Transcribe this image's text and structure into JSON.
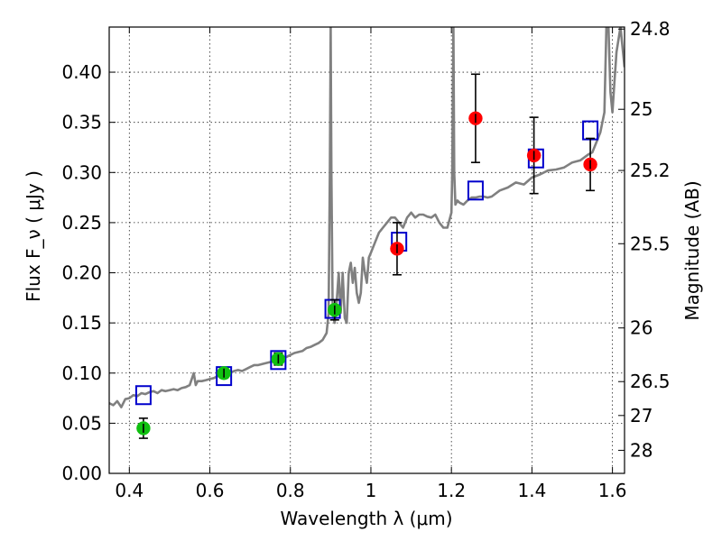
{
  "chart_data": {
    "type": "scatter",
    "xlabel": "Wavelength  λ (μm)",
    "ylabel": "Flux  F_ν  ( μJy )",
    "y2label": "Magnitude (AB)",
    "xlim": [
      0.35,
      1.63
    ],
    "ylim": [
      0.0,
      0.445
    ],
    "grid": true,
    "x_ticks": [
      0.4,
      0.6,
      0.8,
      1.0,
      1.2,
      1.4,
      1.6
    ],
    "x_tick_labels": [
      "0.4",
      "0.6",
      "0.8",
      "1",
      "1.2",
      "1.4",
      "1.6"
    ],
    "y_ticks": [
      0.0,
      0.05,
      0.1,
      0.15,
      0.2,
      0.25,
      0.3,
      0.35,
      0.4
    ],
    "y_tick_labels": [
      "0.00",
      "0.05",
      "0.10",
      "0.15",
      "0.20",
      "0.25",
      "0.30",
      "0.35",
      "0.40"
    ],
    "right_axis_labels": [
      "24.8",
      "25",
      "25.2",
      "25.5",
      "26",
      "26.5",
      "27",
      "28"
    ],
    "right_axis_flux": [
      0.443,
      0.363,
      0.302,
      0.229,
      0.145,
      0.0915,
      0.0577,
      0.023
    ],
    "colors": {
      "model": "#808080",
      "optical": "#10c010",
      "nir": "#ff0000",
      "model_box": "#0000cc",
      "errorbar": "#000000"
    },
    "series": [
      {
        "type": "line",
        "role": "model-spectrum",
        "x": [
          0.35,
          0.36,
          0.37,
          0.38,
          0.39,
          0.4,
          0.41,
          0.42,
          0.43,
          0.44,
          0.45,
          0.46,
          0.47,
          0.48,
          0.49,
          0.5,
          0.51,
          0.52,
          0.53,
          0.54,
          0.55,
          0.56,
          0.565,
          0.57,
          0.58,
          0.59,
          0.6,
          0.61,
          0.62,
          0.63,
          0.64,
          0.65,
          0.66,
          0.67,
          0.68,
          0.69,
          0.7,
          0.71,
          0.72,
          0.73,
          0.74,
          0.75,
          0.76,
          0.77,
          0.78,
          0.79,
          0.8,
          0.81,
          0.82,
          0.83,
          0.84,
          0.85,
          0.86,
          0.87,
          0.88,
          0.89,
          0.895,
          0.898,
          0.9,
          0.902,
          0.905,
          0.91,
          0.915,
          0.92,
          0.925,
          0.93,
          0.935,
          0.94,
          0.945,
          0.95,
          0.955,
          0.96,
          0.965,
          0.97,
          0.975,
          0.98,
          0.985,
          0.99,
          0.995,
          1.0,
          1.01,
          1.02,
          1.03,
          1.04,
          1.05,
          1.06,
          1.07,
          1.08,
          1.09,
          1.1,
          1.11,
          1.12,
          1.13,
          1.14,
          1.15,
          1.16,
          1.17,
          1.18,
          1.19,
          1.2,
          1.202,
          1.205,
          1.207,
          1.21,
          1.215,
          1.22,
          1.23,
          1.24,
          1.25,
          1.26,
          1.27,
          1.28,
          1.29,
          1.3,
          1.32,
          1.34,
          1.36,
          1.38,
          1.4,
          1.42,
          1.44,
          1.46,
          1.48,
          1.5,
          1.52,
          1.54,
          1.55,
          1.56,
          1.57,
          1.58,
          1.585,
          1.59,
          1.595,
          1.6,
          1.605,
          1.61,
          1.62,
          1.63
        ],
        "y": [
          0.07,
          0.068,
          0.072,
          0.066,
          0.074,
          0.075,
          0.078,
          0.077,
          0.08,
          0.079,
          0.081,
          0.082,
          0.08,
          0.083,
          0.082,
          0.083,
          0.084,
          0.083,
          0.085,
          0.086,
          0.088,
          0.1,
          0.088,
          0.092,
          0.092,
          0.093,
          0.094,
          0.095,
          0.097,
          0.096,
          0.1,
          0.1,
          0.102,
          0.103,
          0.102,
          0.104,
          0.106,
          0.108,
          0.108,
          0.109,
          0.11,
          0.111,
          0.112,
          0.113,
          0.115,
          0.116,
          0.118,
          0.12,
          0.121,
          0.122,
          0.125,
          0.126,
          0.128,
          0.13,
          0.133,
          0.14,
          0.16,
          0.3,
          0.445,
          0.3,
          0.16,
          0.15,
          0.17,
          0.2,
          0.16,
          0.2,
          0.155,
          0.15,
          0.2,
          0.21,
          0.19,
          0.205,
          0.18,
          0.17,
          0.18,
          0.215,
          0.2,
          0.19,
          0.215,
          0.22,
          0.23,
          0.24,
          0.245,
          0.25,
          0.255,
          0.255,
          0.25,
          0.245,
          0.255,
          0.26,
          0.255,
          0.258,
          0.258,
          0.256,
          0.255,
          0.258,
          0.25,
          0.245,
          0.245,
          0.26,
          0.3,
          0.445,
          0.3,
          0.268,
          0.272,
          0.27,
          0.268,
          0.272,
          0.275,
          0.275,
          0.276,
          0.276,
          0.275,
          0.276,
          0.282,
          0.285,
          0.29,
          0.288,
          0.295,
          0.298,
          0.302,
          0.303,
          0.305,
          0.31,
          0.312,
          0.318,
          0.32,
          0.33,
          0.34,
          0.36,
          0.445,
          0.445,
          0.38,
          0.36,
          0.39,
          0.42,
          0.445,
          0.405
        ]
      },
      {
        "type": "scatter",
        "role": "model-photometry",
        "marker": "square",
        "x": [
          0.435,
          0.635,
          0.77,
          0.905,
          1.07,
          1.26,
          1.41,
          1.545
        ],
        "y": [
          0.078,
          0.097,
          0.113,
          0.164,
          0.231,
          0.282,
          0.314,
          0.342
        ]
      },
      {
        "type": "scatter",
        "role": "optical-photometry",
        "marker": "circle",
        "x": [
          0.435,
          0.635,
          0.77,
          0.91
        ],
        "y": [
          0.045,
          0.1,
          0.114,
          0.163
        ],
        "yerr": [
          0.01,
          0.005,
          0.006,
          0.01
        ]
      },
      {
        "type": "scatter",
        "role": "nir-photometry",
        "marker": "circle",
        "x": [
          1.065,
          1.26,
          1.405,
          1.545
        ],
        "y": [
          0.224,
          0.354,
          0.317,
          0.308
        ],
        "yerr": [
          0.026,
          0.044,
          0.038,
          0.026
        ]
      }
    ]
  }
}
